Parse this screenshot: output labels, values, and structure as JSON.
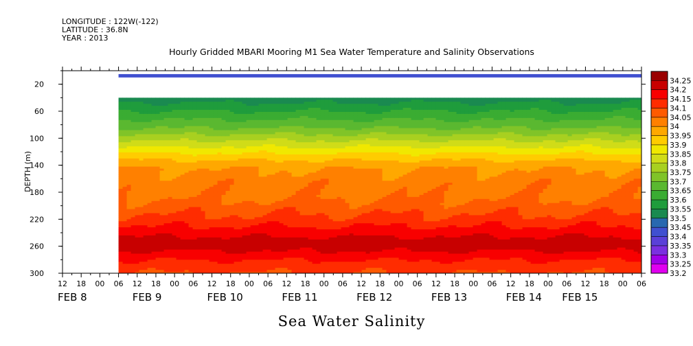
{
  "header": {
    "longitude": "LONGITUDE : 122W(-122)",
    "latitude": "LATITUDE : 36.8N",
    "year": "YEAR : 2013"
  },
  "chart_data": {
    "type": "heatmap",
    "title": "Hourly Gridded MBARI Mooring M1 Sea Water Temperature and Salinity Observations",
    "xlabel": "",
    "ylabel": "DEPTH (m)",
    "bottom_label": "Sea Water Salinity",
    "x_range_hours": [
      -12,
      174
    ],
    "data_start_hour": 6,
    "y_range": [
      0,
      300
    ],
    "y_ticks": [
      20,
      60,
      100,
      140,
      180,
      220,
      260,
      300
    ],
    "x_ticks": [
      "12",
      "18",
      "00",
      "06",
      "12",
      "18",
      "00",
      "06",
      "12",
      "18",
      "00",
      "06",
      "12",
      "18",
      "00",
      "06",
      "12",
      "18",
      "00",
      "06",
      "12",
      "18",
      "00",
      "06",
      "12",
      "18",
      "00",
      "06",
      "12",
      "18",
      "00",
      "06"
    ],
    "date_labels": [
      {
        "label": "FEB  8",
        "hour": -12
      },
      {
        "label": "FEB  9",
        "hour": 12
      },
      {
        "label": "FEB 10",
        "hour": 36
      },
      {
        "label": "FEB 11",
        "hour": 60
      },
      {
        "label": "FEB 12",
        "hour": 84
      },
      {
        "label": "FEB 13",
        "hour": 108
      },
      {
        "label": "FEB 14",
        "hour": 132
      },
      {
        "label": "FEB 15",
        "hour": 150
      }
    ],
    "levels": [
      33.2,
      33.25,
      33.3,
      33.35,
      33.4,
      33.45,
      33.5,
      33.55,
      33.6,
      33.65,
      33.7,
      33.75,
      33.8,
      33.85,
      33.9,
      33.95,
      34,
      34.05,
      34.1,
      34.15,
      34.2,
      34.25
    ],
    "level_labels": [
      "33.2",
      "33.25",
      "33.3",
      "33.35",
      "33.4",
      "33.45",
      "33.5",
      "33.55",
      "33.6",
      "33.65",
      "33.7",
      "33.75",
      "33.8",
      "33.85",
      "33.9",
      "33.95",
      "34",
      "34.05",
      "34.1",
      "34.15",
      "34.2",
      "34.25"
    ],
    "colors": [
      "#e000f0",
      "#a000e8",
      "#7a30e0",
      "#5a40d8",
      "#4050d0",
      "#2868b0",
      "#1a8a50",
      "#1f9c3c",
      "#3aac32",
      "#5ab830",
      "#80c428",
      "#a8d020",
      "#d0dc18",
      "#f0e800",
      "#ffcc00",
      "#ffa800",
      "#ff8000",
      "#ff5a00",
      "#ff2c00",
      "#f80000",
      "#c80000",
      "#9a0000"
    ],
    "surface_band": {
      "depth_top": 5,
      "depth_bottom": 10,
      "value": 33.43
    },
    "depth_profile": [
      {
        "depth": 40,
        "value": 33.52
      },
      {
        "depth": 55,
        "value": 33.58
      },
      {
        "depth": 70,
        "value": 33.64
      },
      {
        "depth": 85,
        "value": 33.7
      },
      {
        "depth": 100,
        "value": 33.78
      },
      {
        "depth": 115,
        "value": 33.86
      },
      {
        "depth": 130,
        "value": 33.94
      },
      {
        "depth": 145,
        "value": 34.0
      },
      {
        "depth": 165,
        "value": 34.03
      },
      {
        "depth": 185,
        "value": 34.04
      },
      {
        "depth": 205,
        "value": 34.08
      },
      {
        "depth": 225,
        "value": 34.13
      },
      {
        "depth": 240,
        "value": 34.18
      },
      {
        "depth": 252,
        "value": 34.22
      },
      {
        "depth": 262,
        "value": 34.22
      },
      {
        "depth": 275,
        "value": 34.17
      },
      {
        "depth": 290,
        "value": 34.12
      },
      {
        "depth": 300,
        "value": 34.1
      }
    ]
  }
}
